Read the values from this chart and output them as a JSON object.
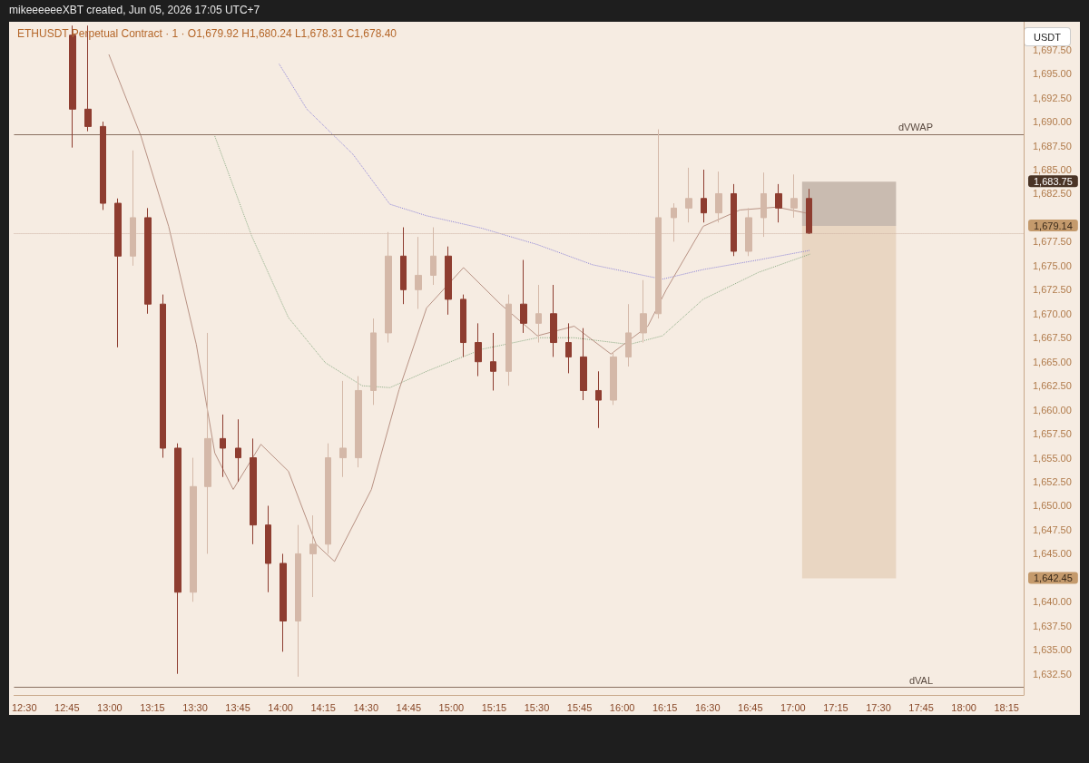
{
  "chart_data": {
    "type": "candlestick",
    "title": "ETHUSDT Perpetual Contract · 1 · O1,679.92 H1,680.24 L1,678.31 C1,678.40",
    "subtitle": "mikeeeeeeXBT created, Jun 05, 2026 17:05 UTC+7",
    "ylabel": "USDT",
    "x": [
      12.784,
      12.872,
      12.96,
      13.048,
      13.136,
      13.224,
      13.312,
      13.4,
      13.488,
      13.575,
      13.663,
      13.751,
      13.839,
      13.927,
      14.015,
      14.103,
      14.191,
      14.279,
      14.367,
      14.455,
      14.543,
      14.631,
      14.719,
      14.806,
      14.894,
      14.982,
      15.07,
      15.158,
      15.246,
      15.334,
      15.422,
      15.51,
      15.598,
      15.686,
      15.774,
      15.862,
      15.949,
      16.037,
      16.125,
      16.213,
      16.301,
      16.389,
      16.477,
      16.565,
      16.653,
      16.741,
      16.829,
      16.917,
      17.005,
      17.093
    ],
    "ohlc": [
      [
        1699,
        1700,
        1687.3,
        1691.3
      ],
      [
        1691.3,
        1700,
        1689,
        1689.5
      ],
      [
        1689.5,
        1690,
        1680.8,
        1681.5
      ],
      [
        1681.5,
        1682,
        1666.5,
        1676
      ],
      [
        1676,
        1687,
        1675,
        1680
      ],
      [
        1680,
        1681,
        1670,
        1671
      ],
      [
        1671,
        1672,
        1655,
        1656
      ],
      [
        1656,
        1656.5,
        1632.5,
        1641
      ],
      [
        1641,
        1655,
        1640,
        1652
      ],
      [
        1652,
        1668,
        1645,
        1657
      ],
      [
        1657,
        1659.5,
        1653,
        1656
      ],
      [
        1656,
        1659,
        1652.5,
        1655
      ],
      [
        1655,
        1657,
        1646,
        1648
      ],
      [
        1648,
        1650,
        1641,
        1644
      ],
      [
        1644,
        1645,
        1634.8,
        1638
      ],
      [
        1638,
        1648,
        1632.2,
        1645
      ],
      [
        1645,
        1649,
        1640.5,
        1646
      ],
      [
        1646,
        1656.5,
        1645,
        1655
      ],
      [
        1655,
        1663,
        1653,
        1656
      ],
      [
        1655,
        1663.5,
        1654,
        1662
      ],
      [
        1662,
        1669.5,
        1660.5,
        1668
      ],
      [
        1668,
        1678.5,
        1667,
        1676
      ],
      [
        1676,
        1679,
        1671,
        1672.5
      ],
      [
        1672.5,
        1678,
        1670.5,
        1674
      ],
      [
        1674,
        1679,
        1673,
        1676
      ],
      [
        1676,
        1677,
        1669.9,
        1671.5
      ],
      [
        1671.5,
        1672,
        1665.5,
        1667
      ],
      [
        1667,
        1669,
        1663.5,
        1665
      ],
      [
        1665,
        1668,
        1662,
        1664
      ],
      [
        1664,
        1672,
        1662.5,
        1671
      ],
      [
        1671,
        1675.6,
        1668,
        1669
      ],
      [
        1669,
        1673,
        1667,
        1670
      ],
      [
        1670,
        1673,
        1665.5,
        1667
      ],
      [
        1667,
        1669,
        1663.8,
        1665.5
      ],
      [
        1665.5,
        1668.5,
        1661,
        1662
      ],
      [
        1662,
        1664,
        1658.1,
        1661
      ],
      [
        1661,
        1666,
        1660.5,
        1665.5
      ],
      [
        1665.5,
        1671,
        1664.5,
        1668
      ],
      [
        1668,
        1673.5,
        1667,
        1670
      ],
      [
        1670,
        1689.2,
        1669.5,
        1680
      ],
      [
        1680,
        1681.5,
        1677.5,
        1681
      ],
      [
        1681,
        1685.2,
        1679.5,
        1682
      ],
      [
        1682,
        1685,
        1679.5,
        1680.5
      ],
      [
        1680.5,
        1684.8,
        1679.5,
        1682.5
      ],
      [
        1682.5,
        1683.5,
        1676,
        1676.5
      ],
      [
        1676.5,
        1681,
        1676,
        1680
      ],
      [
        1680,
        1684.7,
        1678,
        1682.5
      ],
      [
        1682.5,
        1683.5,
        1679.5,
        1681
      ],
      [
        1681,
        1684.5,
        1680,
        1682
      ],
      [
        1682,
        1683,
        1678.3,
        1678.4
      ]
    ],
    "colors": [
      "#8e3d30",
      "#8e3d30",
      "#8e3d30",
      "#8e3d30",
      "#d4b8a8",
      "#8e3d30",
      "#8e3d30",
      "#8e3d30",
      "#d4b8a8",
      "#d4b8a8",
      "#8e3d30",
      "#8e3d30",
      "#8e3d30",
      "#8e3d30",
      "#8e3d30",
      "#d4b8a8",
      "#d4b8a8",
      "#d4b8a8",
      "#d4b8a8",
      "#d4b8a8",
      "#d4b8a8",
      "#d4b8a8",
      "#8e3d30",
      "#d4b8a8",
      "#d4b8a8",
      "#8e3d30",
      "#8e3d30",
      "#8e3d30",
      "#8e3d30",
      "#d4b8a8",
      "#8e3d30",
      "#d4b8a8",
      "#8e3d30",
      "#8e3d30",
      "#8e3d30",
      "#8e3d30",
      "#d4b8a8",
      "#d4b8a8",
      "#d4b8a8",
      "#d4b8a8",
      "#d4b8a8",
      "#d4b8a8",
      "#8e3d30",
      "#d4b8a8",
      "#8e3d30",
      "#d4b8a8",
      "#d4b8a8",
      "#8e3d30",
      "#d4b8a8",
      "#8e3d30"
    ],
    "series": [
      {
        "type": "line",
        "color": "#8f86d8",
        "line_style": "dotted",
        "x": [
          13.992,
          14.154,
          14.424,
          14.64,
          14.855,
          15.179,
          15.503,
          15.826,
          16.15,
          16.236,
          16.474,
          16.797,
          17.099
        ],
        "values": [
          1696.0,
          1691.3,
          1686.6,
          1681.4,
          1680.2,
          1678.9,
          1677.2,
          1675.1,
          1673.9,
          1673.6,
          1674.6,
          1675.6,
          1676.6
        ]
      },
      {
        "type": "line",
        "color": "#8fae88",
        "line_style": "dotted",
        "x": [
          13.615,
          13.831,
          14.046,
          14.262,
          14.478,
          14.64,
          14.855,
          15.179,
          15.503,
          15.719,
          16.042,
          16.236,
          16.474,
          16.797,
          17.099
        ],
        "values": [
          1688.5,
          1678.1,
          1669.6,
          1664.9,
          1662.5,
          1662.3,
          1664.0,
          1666.3,
          1667.5,
          1667.5,
          1666.8,
          1667.7,
          1671.5,
          1674.3,
          1676.2
        ]
      },
      {
        "type": "line",
        "color": "#b89284",
        "line_style": "solid",
        "x": [
          12.995,
          13.183,
          13.345,
          13.507,
          13.615,
          13.723,
          13.885,
          14.046,
          14.208,
          14.316,
          14.532,
          14.694,
          14.855,
          15.071,
          15.287,
          15.503,
          15.719,
          15.934,
          16.15,
          16.258,
          16.474,
          16.689,
          16.905,
          17.099
        ],
        "values": [
          1697.0,
          1688.5,
          1679.1,
          1666.8,
          1655.5,
          1651.7,
          1656.4,
          1653.6,
          1646.0,
          1644.2,
          1651.7,
          1662.1,
          1670.6,
          1674.8,
          1671.0,
          1667.7,
          1668.7,
          1665.8,
          1668.7,
          1672.5,
          1679.1,
          1680.8,
          1681.1,
          1680.4
        ]
      }
    ],
    "xlim": [
      12.44,
      18.35
    ],
    "xticks": [
      {
        "value": 12.5,
        "label": "12:30"
      },
      {
        "value": 12.75,
        "label": "12:45"
      },
      {
        "value": 13,
        "label": "13:00"
      },
      {
        "value": 13.25,
        "label": "13:15"
      },
      {
        "value": 13.5,
        "label": "13:30"
      },
      {
        "value": 13.75,
        "label": "13:45"
      },
      {
        "value": 14,
        "label": "14:00"
      },
      {
        "value": 14.25,
        "label": "14:15"
      },
      {
        "value": 14.5,
        "label": "14:30"
      },
      {
        "value": 14.75,
        "label": "14:45"
      },
      {
        "value": 15,
        "label": "15:00"
      },
      {
        "value": 15.25,
        "label": "15:15"
      },
      {
        "value": 15.5,
        "label": "15:30"
      },
      {
        "value": 15.75,
        "label": "15:45"
      },
      {
        "value": 16,
        "label": "16:00"
      },
      {
        "value": 16.25,
        "label": "16:15"
      },
      {
        "value": 16.5,
        "label": "16:30"
      },
      {
        "value": 16.75,
        "label": "16:45"
      },
      {
        "value": 17,
        "label": "17:00"
      },
      {
        "value": 17.25,
        "label": "17:15"
      },
      {
        "value": 17.5,
        "label": "17:30"
      },
      {
        "value": 17.75,
        "label": "17:45"
      },
      {
        "value": 18,
        "label": "18:00"
      },
      {
        "value": 18.25,
        "label": "18:15"
      }
    ],
    "ylim": [
      1630.3,
      1700.4
    ],
    "yticks": [
      {
        "value": 1632.5,
        "label": "1,632.50"
      },
      {
        "value": 1635,
        "label": "1,635.00"
      },
      {
        "value": 1637.5,
        "label": "1,637.50"
      },
      {
        "value": 1640,
        "label": "1,640.00"
      },
      {
        "value": 1645,
        "label": "1,645.00"
      },
      {
        "value": 1647.5,
        "label": "1,647.50"
      },
      {
        "value": 1650,
        "label": "1,650.00"
      },
      {
        "value": 1652.5,
        "label": "1,652.50"
      },
      {
        "value": 1655,
        "label": "1,655.00"
      },
      {
        "value": 1657.5,
        "label": "1,657.50"
      },
      {
        "value": 1660,
        "label": "1,660.00"
      },
      {
        "value": 1662.5,
        "label": "1,662.50"
      },
      {
        "value": 1665,
        "label": "1,665.00"
      },
      {
        "value": 1667.5,
        "label": "1,667.50"
      },
      {
        "value": 1670,
        "label": "1,670.00"
      },
      {
        "value": 1672.5,
        "label": "1,672.50"
      },
      {
        "value": 1675,
        "label": "1,675.00"
      },
      {
        "value": 1677.5,
        "label": "1,677.50"
      },
      {
        "value": 1682.5,
        "label": "1,682.50"
      },
      {
        "value": 1685,
        "label": "1,685.00"
      },
      {
        "value": 1687.5,
        "label": "1,687.50"
      },
      {
        "value": 1690,
        "label": "1,690.00"
      },
      {
        "value": 1692.5,
        "label": "1,692.50"
      },
      {
        "value": 1695,
        "label": "1,695.00"
      },
      {
        "value": 1697.5,
        "label": "1,697.50"
      }
    ],
    "ref_lines": [
      {
        "axis": "y",
        "value": 1688.7,
        "label": "dVWAP",
        "color": "#8a7060",
        "line_style": "solid"
      },
      {
        "axis": "y",
        "value": 1631.1,
        "label": "dVAL",
        "color": "#8a7060",
        "line_style": "solid"
      },
      {
        "axis": "y",
        "value": 1678.4,
        "color": "#cdb3a3",
        "line_style": "dotted"
      }
    ],
    "bands": [
      {
        "axis": "y",
        "from": 1679.14,
        "to": 1683.75,
        "color": "#c9bbb0"
      },
      {
        "axis": "y",
        "from": 1642.45,
        "to": 1679.14,
        "color": "#e9d6c2"
      }
    ],
    "annotations": [
      "1,683.75",
      "1,679.14",
      "1,642.45"
    ],
    "grid": false,
    "marker": "none"
  }
}
